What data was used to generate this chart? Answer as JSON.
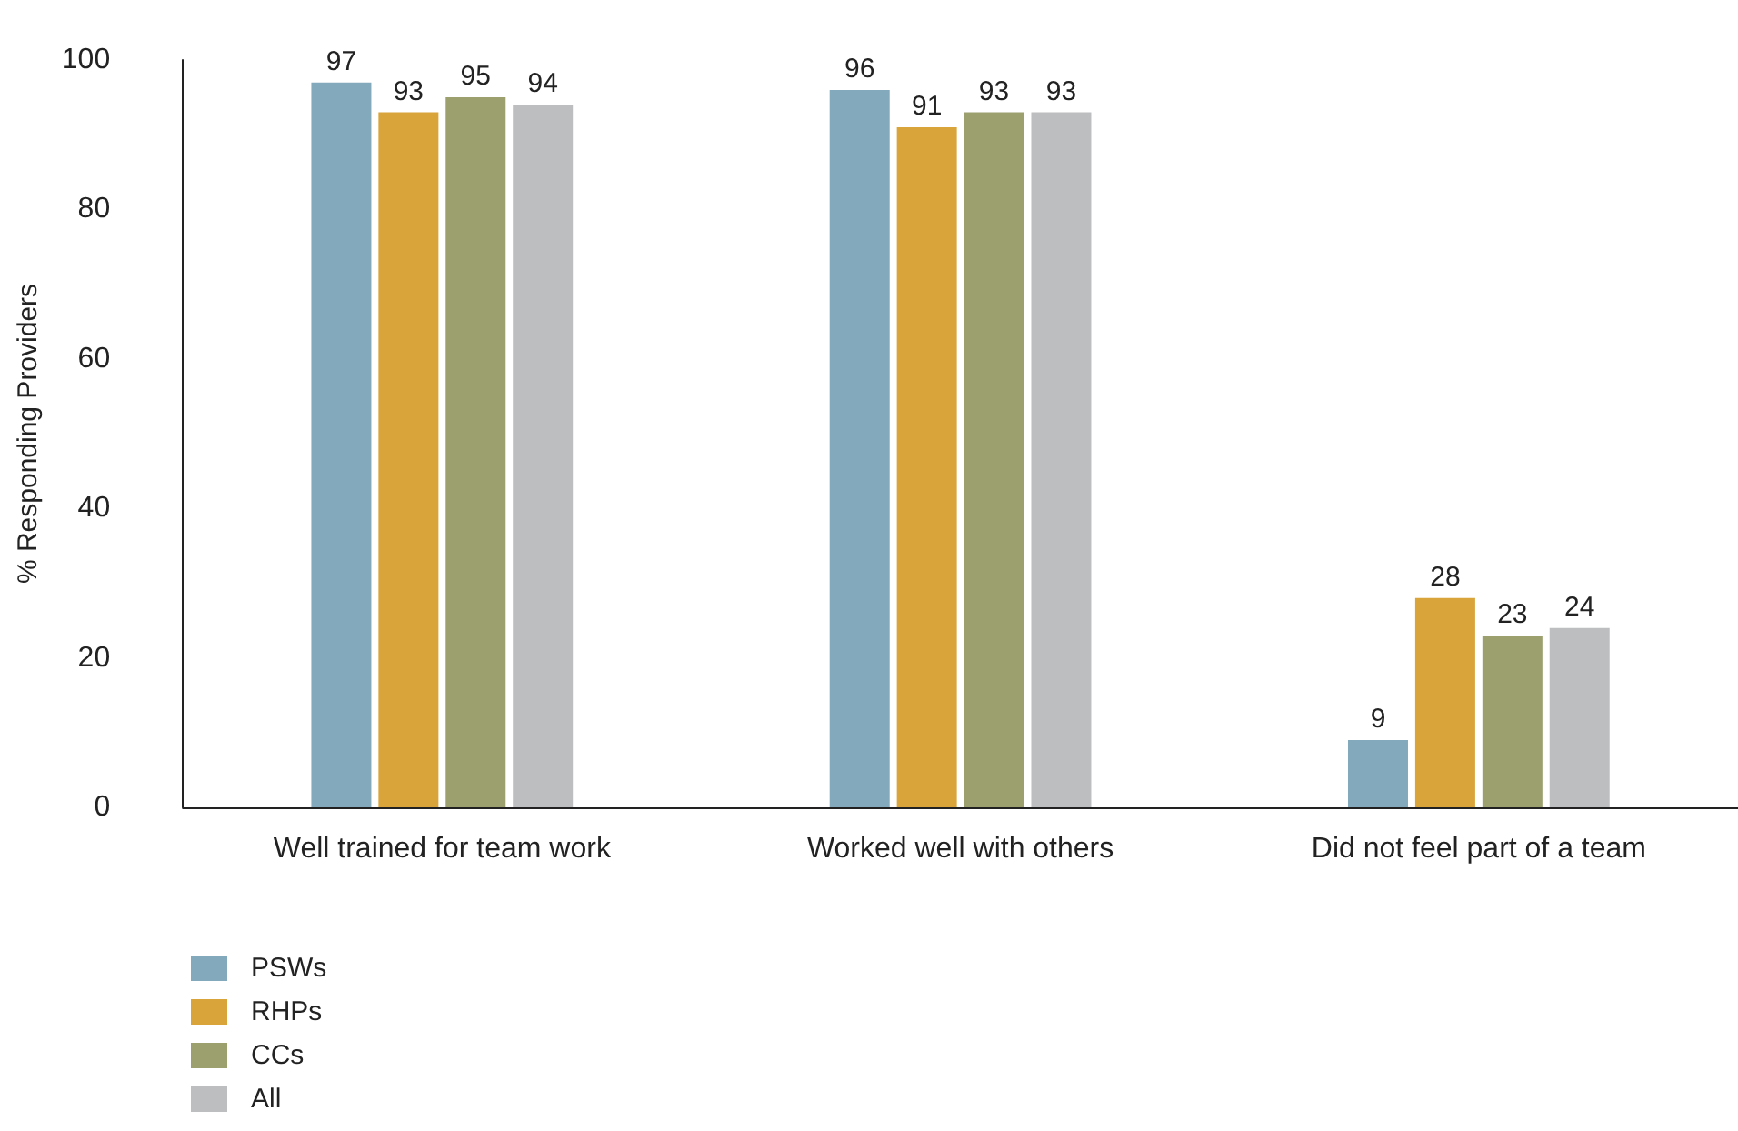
{
  "chart_data": {
    "type": "bar",
    "ylabel": "% Responding Providers",
    "categories": [
      "Well trained for team work",
      "Worked well with others",
      "Did not feel part of a team"
    ],
    "series": [
      {
        "name": "PSWs",
        "color": "#82a9bc",
        "values": [
          97,
          96,
          9
        ]
      },
      {
        "name": "RHPs",
        "color": "#d9a43a",
        "values": [
          93,
          91,
          28
        ]
      },
      {
        "name": "CCs",
        "color": "#9ba06e",
        "values": [
          95,
          93,
          23
        ]
      },
      {
        "name": "All",
        "color": "#bdbec0",
        "values": [
          94,
          93,
          24
        ]
      }
    ],
    "ylim": [
      0,
      100
    ],
    "yticks": [
      0,
      20,
      40,
      60,
      80,
      100
    ],
    "grid": false,
    "legend": "bottom left",
    "data_labels": true
  }
}
